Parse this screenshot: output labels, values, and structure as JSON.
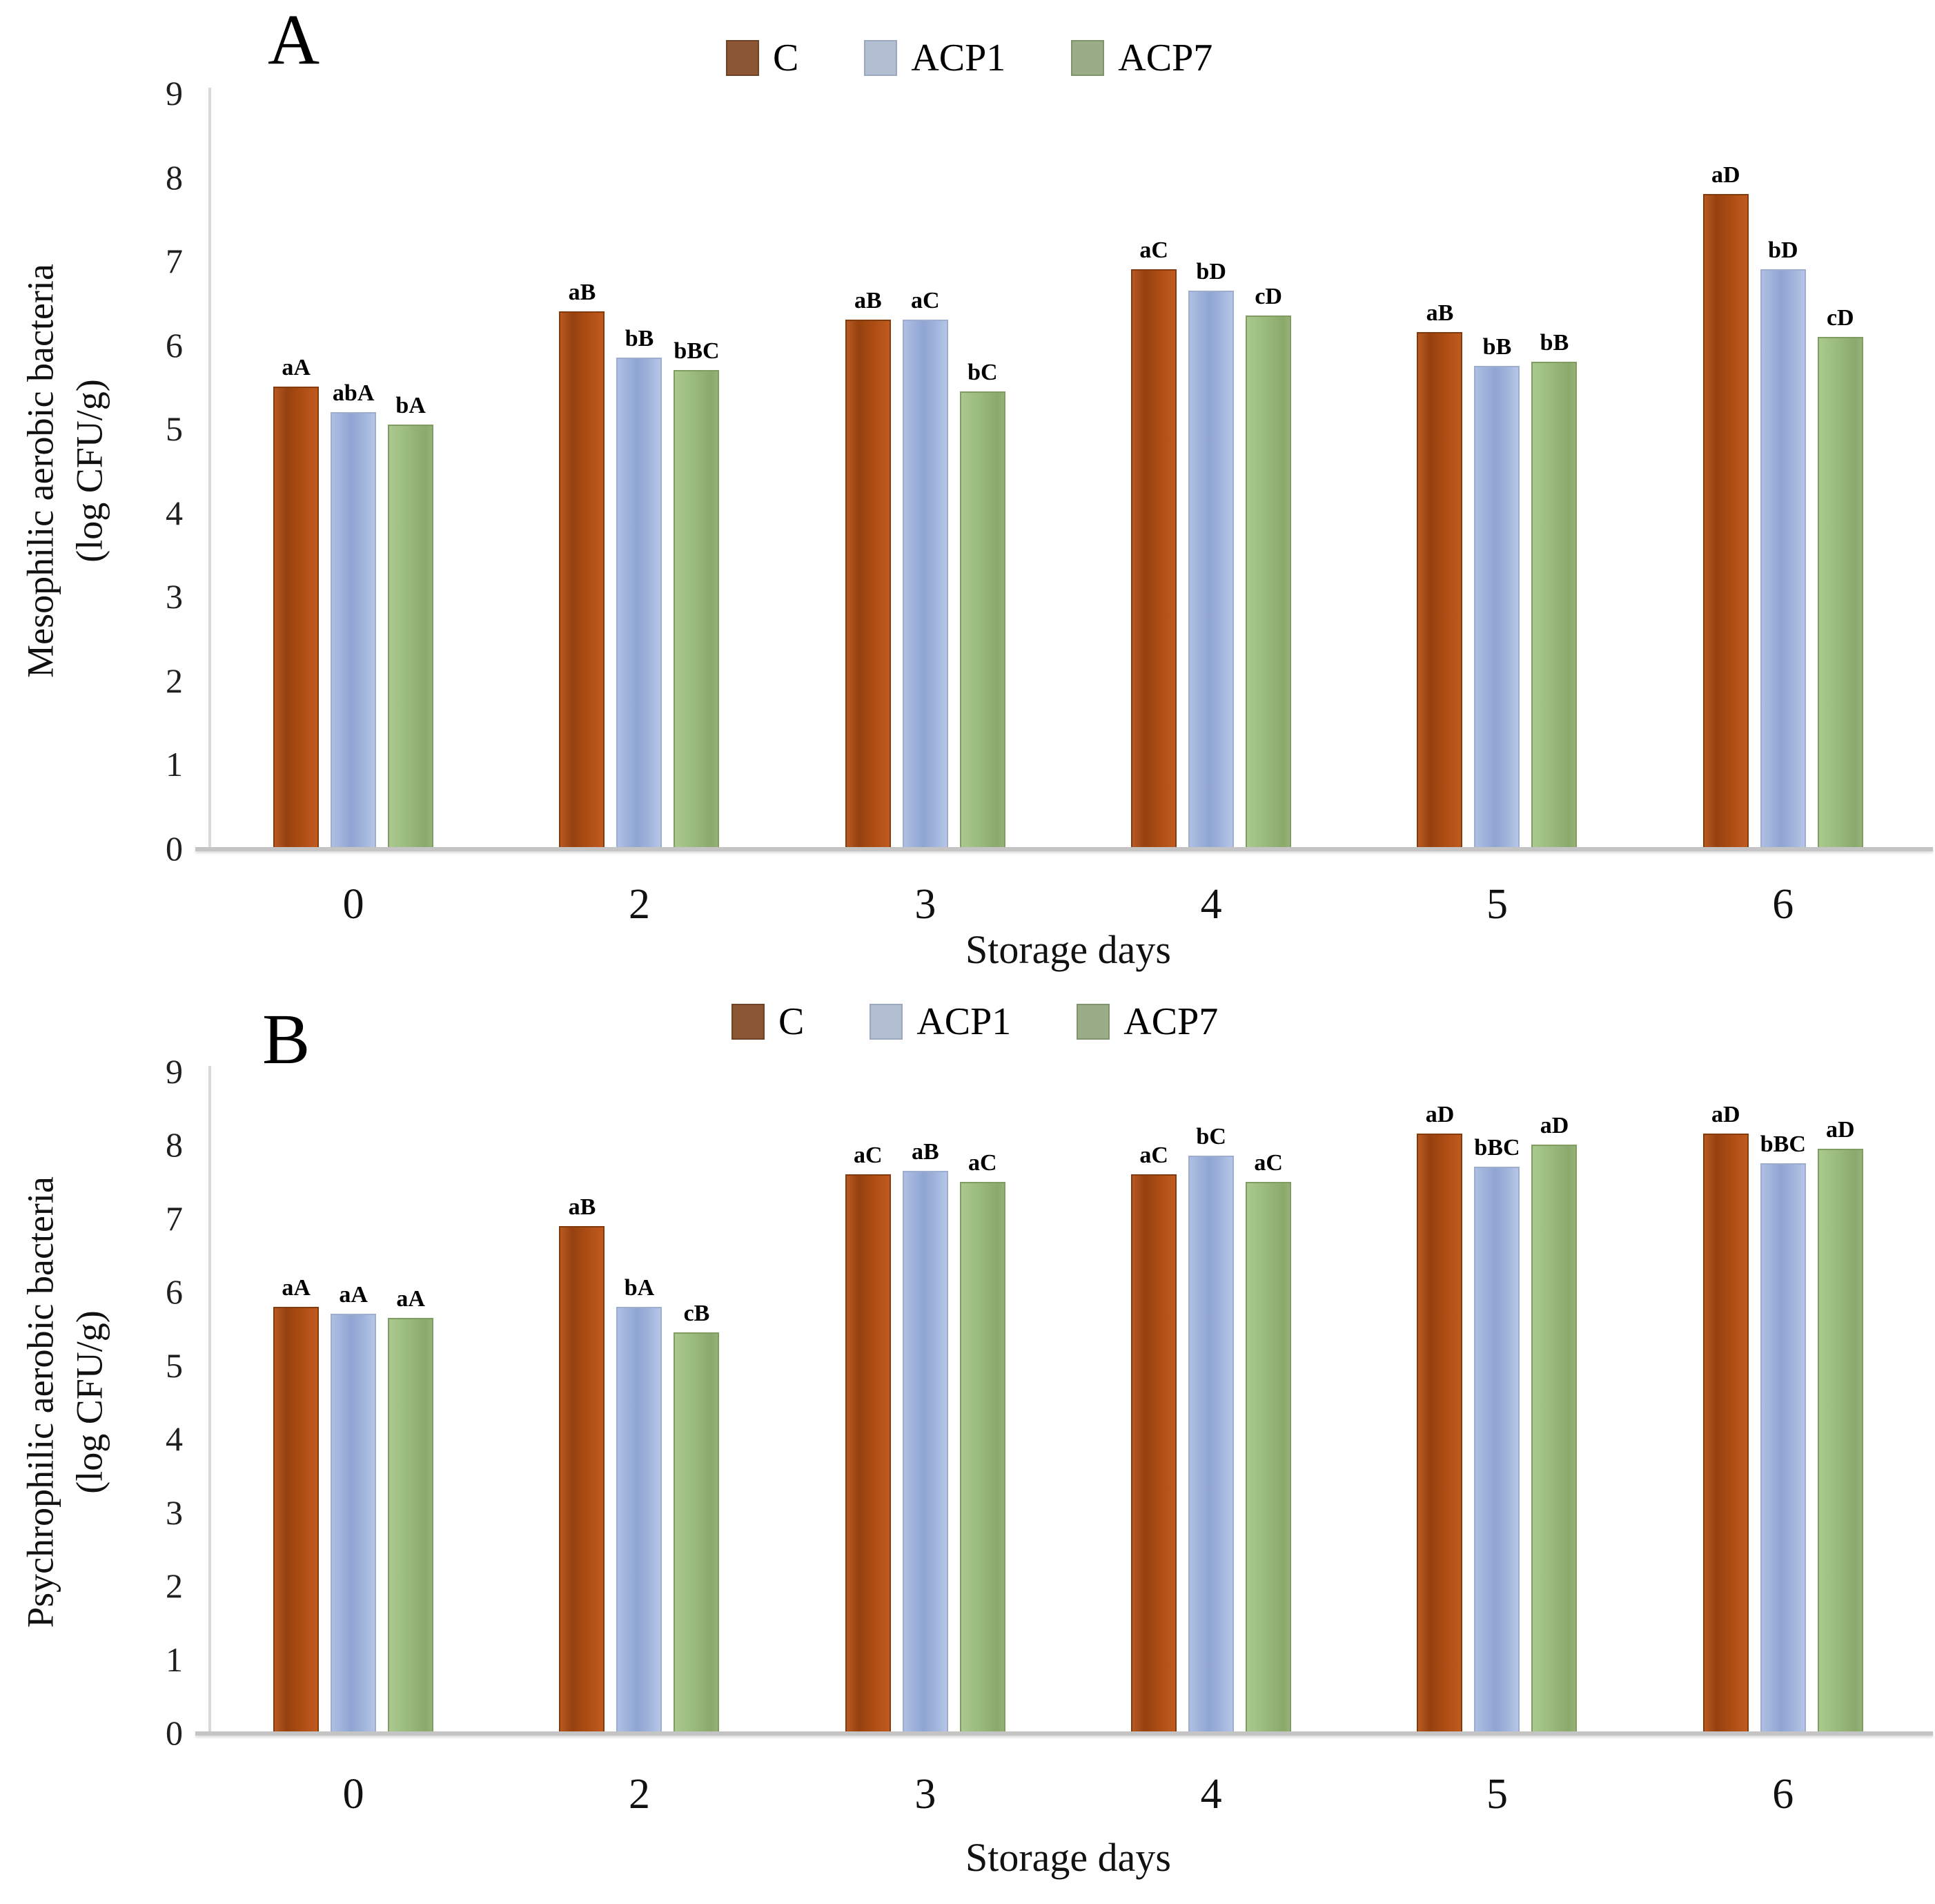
{
  "figure": {
    "panel_letters": [
      "A",
      "B"
    ]
  },
  "colors": {
    "c_bar": "#b35015",
    "c_bar_border": "#833a0c",
    "acp1_bar": "#9db1da",
    "acp1_bar_border": "#9cadd0",
    "acp7_bar": "#99ba7c",
    "acp7_bar_border": "#7f9c61",
    "c_legend": "#8a5634",
    "acp1_legend": "#b2bfd3",
    "acp7_legend": "#9bad88",
    "axis_line": "#d9d9d9",
    "baseline": "#c4c4c4"
  },
  "chart_data": [
    {
      "type": "bar",
      "panel": "A",
      "ylabel_line1": "Mesophilic aerobic bacteria",
      "ylabel_line2": "(log CFU/g)",
      "xlabel": "Storage days",
      "categories": [
        "0",
        "2",
        "3",
        "4",
        "5",
        "6"
      ],
      "ylim": [
        0,
        9
      ],
      "yticks": [
        0,
        1,
        2,
        3,
        4,
        5,
        6,
        7,
        8,
        9
      ],
      "grid": "off",
      "legend_position": "top-center",
      "series": [
        {
          "name": "C",
          "key": "c",
          "values": [
            5.5,
            6.4,
            6.3,
            6.9,
            6.15,
            7.8
          ],
          "labels": [
            "aA",
            "aB",
            "aB",
            "aC",
            "aB",
            "aD"
          ]
        },
        {
          "name": "ACP1",
          "key": "acp1",
          "values": [
            5.2,
            5.85,
            6.3,
            6.65,
            5.75,
            6.9
          ],
          "labels": [
            "abA",
            "bB",
            "aC",
            "bD",
            "bB",
            "bD"
          ]
        },
        {
          "name": "ACP7",
          "key": "acp7",
          "values": [
            5.05,
            5.7,
            5.45,
            6.35,
            5.8,
            6.1
          ],
          "labels": [
            "bA",
            "bBC",
            "bC",
            "cD",
            "bB",
            "cD"
          ]
        }
      ]
    },
    {
      "type": "bar",
      "panel": "B",
      "ylabel_line1": "Psychrophilic aerobic bacteria",
      "ylabel_line2": "(log CFU/g)",
      "xlabel": "Storage days",
      "categories": [
        "0",
        "2",
        "3",
        "4",
        "5",
        "6"
      ],
      "ylim": [
        0,
        9
      ],
      "yticks": [
        0,
        1,
        2,
        3,
        4,
        5,
        6,
        7,
        8,
        9
      ],
      "grid": "off",
      "legend_position": "top-center",
      "series": [
        {
          "name": "C",
          "key": "c",
          "values": [
            5.8,
            6.9,
            7.6,
            7.6,
            8.15,
            8.15
          ],
          "labels": [
            "aA",
            "aB",
            "aC",
            "aC",
            "aD",
            "aD"
          ]
        },
        {
          "name": "ACP1",
          "key": "acp1",
          "values": [
            5.7,
            5.8,
            7.65,
            7.85,
            7.7,
            7.75
          ],
          "labels": [
            "aA",
            "bA",
            "aB",
            "bC",
            "bBC",
            "bBC"
          ]
        },
        {
          "name": "ACP7",
          "key": "acp7",
          "values": [
            5.65,
            5.45,
            7.5,
            7.5,
            8.0,
            7.95
          ],
          "labels": [
            "aA",
            "cB",
            "aC",
            "aC",
            "aD",
            "aD"
          ]
        }
      ]
    }
  ]
}
